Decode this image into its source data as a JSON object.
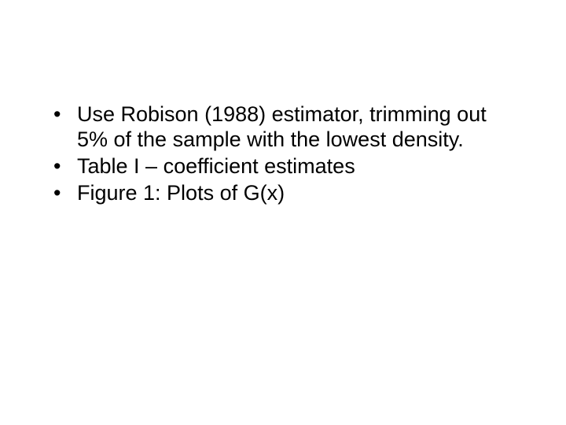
{
  "slide": {
    "bullets": [
      "Use Robison (1988) estimator, trimming out 5% of the sample with the lowest density.",
      "Table I – coefficient estimates",
      "Figure 1: Plots of G(x)"
    ],
    "style": {
      "background_color": "#ffffff",
      "text_color": "#000000",
      "font_family": "Arial",
      "font_size_pt": 27,
      "bullet_char": "•"
    }
  }
}
